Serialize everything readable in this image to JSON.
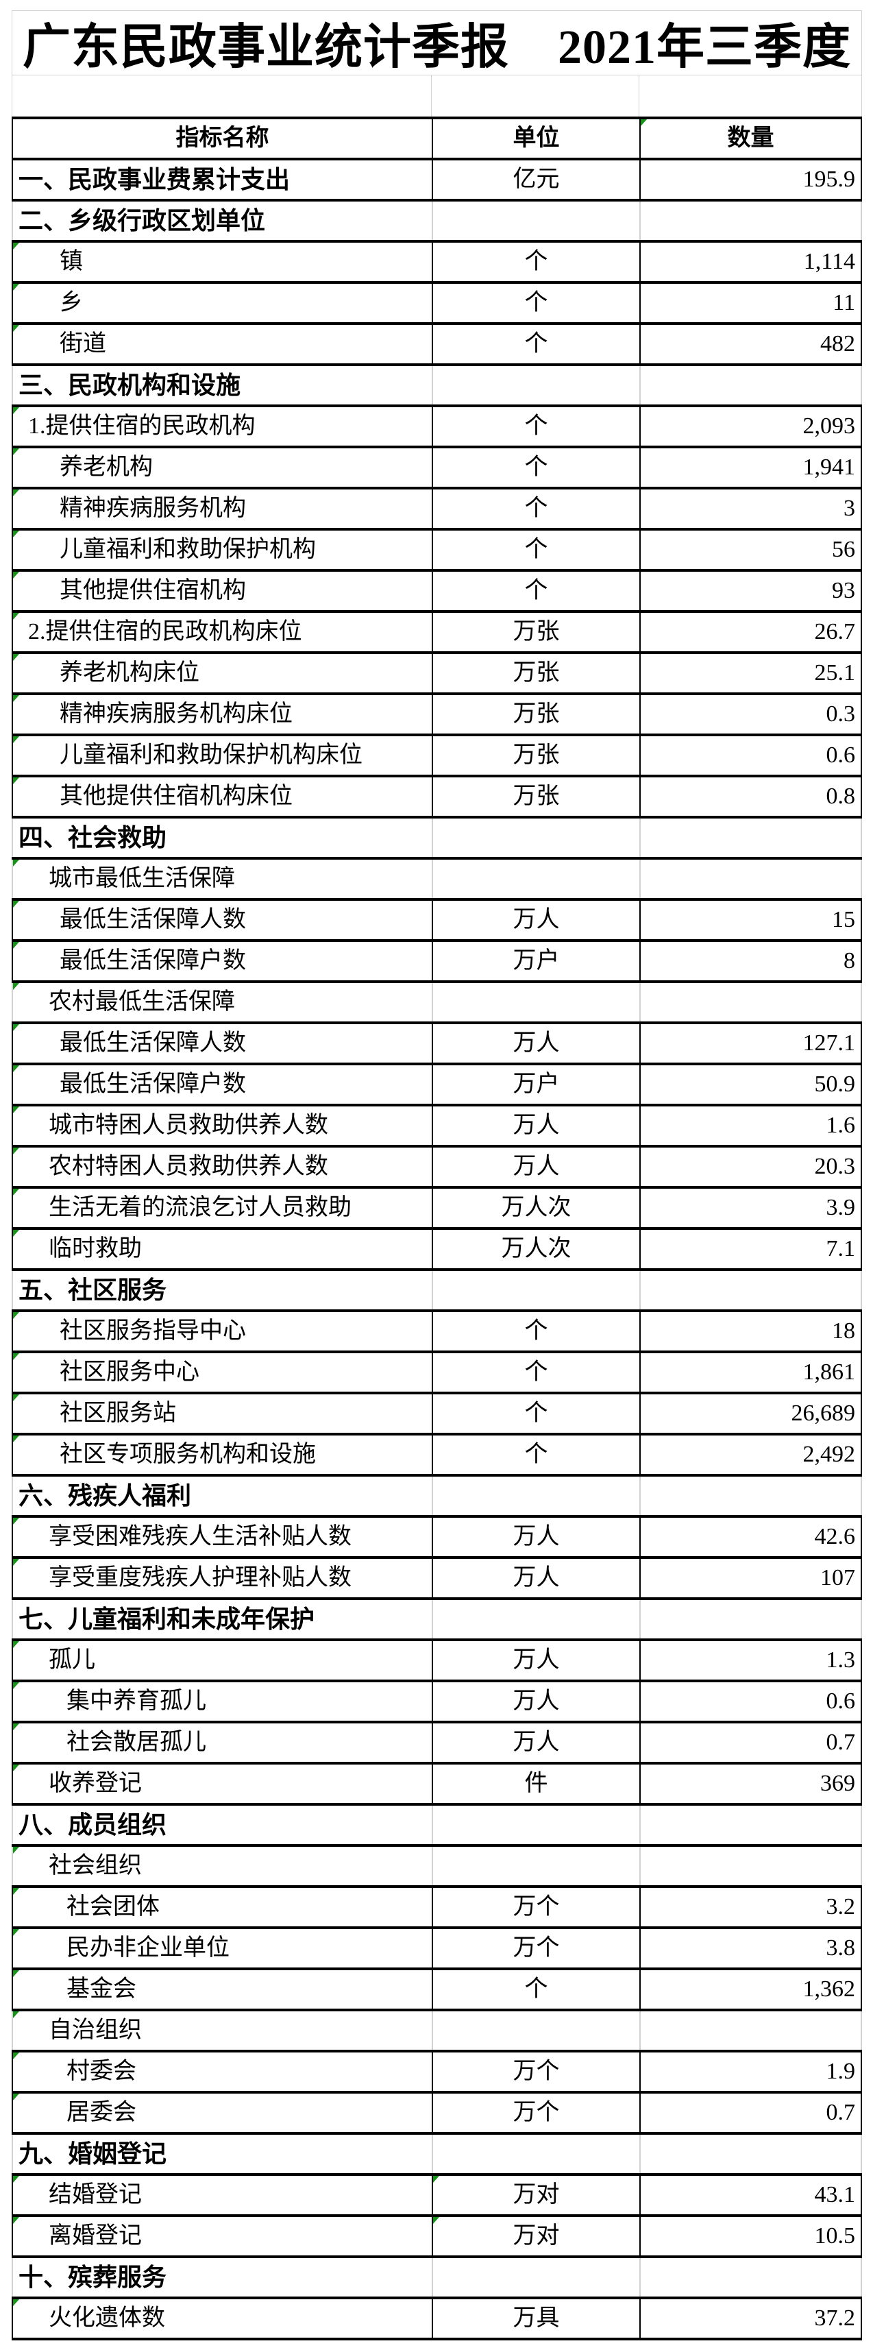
{
  "title": "广东民政事业统计季报　2021年三季度",
  "colors": {
    "marker_green": "#189418",
    "grid_gray": "#d2d2d2",
    "border_black": "#000000",
    "background": "#ffffff"
  },
  "table": {
    "headers": {
      "indicator": "指标名称",
      "unit": "单位",
      "quantity": "数量"
    },
    "header_markers": {
      "quantity": true
    },
    "rows": [
      {
        "name": "一、民政事业费累计支出",
        "unit": "亿元",
        "value": "195.9",
        "level": "section",
        "name_marker": false,
        "unit_marker": false
      },
      {
        "name": "二、乡级行政区划单位",
        "unit": "",
        "value": "",
        "level": "section",
        "name_marker": false,
        "unit_marker": false
      },
      {
        "name": "镇",
        "unit": "个",
        "value": "1,114",
        "level": "l3",
        "name_marker": true,
        "unit_marker": false
      },
      {
        "name": "乡",
        "unit": "个",
        "value": "11",
        "level": "l3",
        "name_marker": true,
        "unit_marker": false
      },
      {
        "name": "街道",
        "unit": "个",
        "value": "482",
        "level": "l3",
        "name_marker": true,
        "unit_marker": false
      },
      {
        "name": "三、民政机构和设施",
        "unit": "",
        "value": "",
        "level": "section",
        "name_marker": false,
        "unit_marker": false
      },
      {
        "name": "1.提供住宿的民政机构",
        "unit": "个",
        "value": "2,093",
        "level": "num",
        "name_marker": true,
        "unit_marker": false
      },
      {
        "name": "养老机构",
        "unit": "个",
        "value": "1,941",
        "level": "l3",
        "name_marker": true,
        "unit_marker": false
      },
      {
        "name": "精神疾病服务机构",
        "unit": "个",
        "value": "3",
        "level": "l3",
        "name_marker": true,
        "unit_marker": false
      },
      {
        "name": "儿童福利和救助保护机构",
        "unit": "个",
        "value": "56",
        "level": "l3",
        "name_marker": true,
        "unit_marker": false
      },
      {
        "name": "其他提供住宿机构",
        "unit": "个",
        "value": "93",
        "level": "l3",
        "name_marker": true,
        "unit_marker": false
      },
      {
        "name": "2.提供住宿的民政机构床位",
        "unit": "万张",
        "value": "26.7",
        "level": "num",
        "name_marker": true,
        "unit_marker": false
      },
      {
        "name": "养老机构床位",
        "unit": "万张",
        "value": "25.1",
        "level": "l3",
        "name_marker": true,
        "unit_marker": false
      },
      {
        "name": "精神疾病服务机构床位",
        "unit": "万张",
        "value": "0.3",
        "level": "l3",
        "name_marker": true,
        "unit_marker": false
      },
      {
        "name": "儿童福利和救助保护机构床位",
        "unit": "万张",
        "value": "0.6",
        "level": "l3",
        "name_marker": true,
        "unit_marker": false
      },
      {
        "name": "其他提供住宿机构床位",
        "unit": "万张",
        "value": "0.8",
        "level": "l3",
        "name_marker": true,
        "unit_marker": false
      },
      {
        "name": "四、社会救助",
        "unit": "",
        "value": "",
        "level": "section",
        "name_marker": false,
        "unit_marker": false
      },
      {
        "name": "城市最低生活保障",
        "unit": "",
        "value": "",
        "level": "l2",
        "name_marker": true,
        "unit_marker": false
      },
      {
        "name": "最低生活保障人数",
        "unit": "万人",
        "value": "15",
        "level": "l3",
        "name_marker": true,
        "unit_marker": false
      },
      {
        "name": "最低生活保障户数",
        "unit": "万户",
        "value": "8",
        "level": "l3",
        "name_marker": true,
        "unit_marker": false
      },
      {
        "name": "农村最低生活保障",
        "unit": "",
        "value": "",
        "level": "l2",
        "name_marker": true,
        "unit_marker": false
      },
      {
        "name": "最低生活保障人数",
        "unit": "万人",
        "value": "127.1",
        "level": "l3",
        "name_marker": true,
        "unit_marker": false
      },
      {
        "name": "最低生活保障户数",
        "unit": "万户",
        "value": "50.9",
        "level": "l3",
        "name_marker": true,
        "unit_marker": false
      },
      {
        "name": "城市特困人员救助供养人数",
        "unit": "万人",
        "value": "1.6",
        "level": "l2",
        "name_marker": true,
        "unit_marker": false
      },
      {
        "name": "农村特困人员救助供养人数",
        "unit": "万人",
        "value": "20.3",
        "level": "l2",
        "name_marker": true,
        "unit_marker": false
      },
      {
        "name": "生活无着的流浪乞讨人员救助",
        "unit": "万人次",
        "value": "3.9",
        "level": "l2",
        "name_marker": true,
        "unit_marker": false
      },
      {
        "name": "临时救助",
        "unit": "万人次",
        "value": "7.1",
        "level": "l2",
        "name_marker": true,
        "unit_marker": false
      },
      {
        "name": "五、社区服务",
        "unit": "",
        "value": "",
        "level": "section",
        "name_marker": false,
        "unit_marker": false
      },
      {
        "name": "社区服务指导中心",
        "unit": "个",
        "value": "18",
        "level": "l3",
        "name_marker": true,
        "unit_marker": false
      },
      {
        "name": "社区服务中心",
        "unit": "个",
        "value": "1,861",
        "level": "l3",
        "name_marker": true,
        "unit_marker": false
      },
      {
        "name": "社区服务站",
        "unit": "个",
        "value": "26,689",
        "level": "l3",
        "name_marker": true,
        "unit_marker": false
      },
      {
        "name": "社区专项服务机构和设施",
        "unit": "个",
        "value": "2,492",
        "level": "l3",
        "name_marker": true,
        "unit_marker": false
      },
      {
        "name": "六、残疾人福利",
        "unit": "",
        "value": "",
        "level": "section",
        "name_marker": false,
        "unit_marker": false
      },
      {
        "name": "享受困难残疾人生活补贴人数",
        "unit": "万人",
        "value": "42.6",
        "level": "l2",
        "name_marker": true,
        "unit_marker": false
      },
      {
        "name": "享受重度残疾人护理补贴人数",
        "unit": "万人",
        "value": "107",
        "level": "l2",
        "name_marker": true,
        "unit_marker": false
      },
      {
        "name": "七、儿童福利和未成年保护",
        "unit": "",
        "value": "",
        "level": "section",
        "name_marker": false,
        "unit_marker": false
      },
      {
        "name": "孤儿",
        "unit": "万人",
        "value": "1.3",
        "level": "l2",
        "name_marker": true,
        "unit_marker": false
      },
      {
        "name": "集中养育孤儿",
        "unit": "万人",
        "value": "0.6",
        "level": "l4",
        "name_marker": true,
        "unit_marker": false
      },
      {
        "name": "社会散居孤儿",
        "unit": "万人",
        "value": "0.7",
        "level": "l4",
        "name_marker": true,
        "unit_marker": false
      },
      {
        "name": "收养登记",
        "unit": "件",
        "value": "369",
        "level": "l2",
        "name_marker": true,
        "unit_marker": false
      },
      {
        "name": "八、成员组织",
        "unit": "",
        "value": "",
        "level": "section",
        "name_marker": false,
        "unit_marker": false
      },
      {
        "name": "社会组织",
        "unit": "",
        "value": "",
        "level": "l2",
        "name_marker": true,
        "unit_marker": false
      },
      {
        "name": "社会团体",
        "unit": "万个",
        "value": "3.2",
        "level": "l4",
        "name_marker": true,
        "unit_marker": false
      },
      {
        "name": "民办非企业单位",
        "unit": "万个",
        "value": "3.8",
        "level": "l4",
        "name_marker": true,
        "unit_marker": false
      },
      {
        "name": "基金会",
        "unit": "个",
        "value": "1,362",
        "level": "l4",
        "name_marker": true,
        "unit_marker": false
      },
      {
        "name": "自治组织",
        "unit": "",
        "value": "",
        "level": "l2",
        "name_marker": true,
        "unit_marker": false
      },
      {
        "name": "村委会",
        "unit": "万个",
        "value": "1.9",
        "level": "l4",
        "name_marker": true,
        "unit_marker": false
      },
      {
        "name": "居委会",
        "unit": "万个",
        "value": "0.7",
        "level": "l4",
        "name_marker": true,
        "unit_marker": false
      },
      {
        "name": "九、婚姻登记",
        "unit": "",
        "value": "",
        "level": "section",
        "name_marker": false,
        "unit_marker": false
      },
      {
        "name": "结婚登记",
        "unit": "万对",
        "value": "43.1",
        "level": "l2",
        "name_marker": true,
        "unit_marker": true
      },
      {
        "name": "离婚登记",
        "unit": "万对",
        "value": "10.5",
        "level": "l2",
        "name_marker": true,
        "unit_marker": true
      },
      {
        "name": "十、殡葬服务",
        "unit": "",
        "value": "",
        "level": "section",
        "name_marker": false,
        "unit_marker": false
      },
      {
        "name": "火化遗体数",
        "unit": "万具",
        "value": "37.2",
        "level": "l2",
        "name_marker": true,
        "unit_marker": false
      }
    ]
  }
}
